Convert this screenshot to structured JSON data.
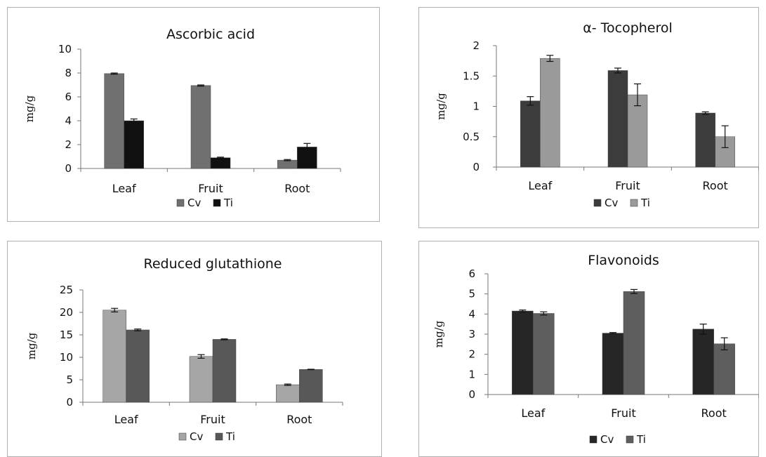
{
  "chart_data": [
    {
      "type": "bar",
      "title": "Ascorbic acid",
      "ylabel": "mg/g",
      "categories": [
        "Leaf",
        "Fruit",
        "Root"
      ],
      "ylim": [
        0,
        10
      ],
      "yticks": [
        0,
        2,
        4,
        6,
        8,
        10
      ],
      "series": [
        {
          "name": "Cv",
          "values": [
            7.95,
            6.95,
            0.7
          ],
          "errors": [
            0.05,
            0.05,
            0.05
          ],
          "color": "#707070"
        },
        {
          "name": "Ti",
          "values": [
            4.0,
            0.9,
            1.8
          ],
          "errors": [
            0.15,
            0.05,
            0.3
          ],
          "color": "#111111"
        }
      ],
      "legend": "bottom",
      "grid": false
    },
    {
      "type": "bar",
      "title": "α- Tocopherol",
      "ylabel": "mg/g",
      "categories": [
        "Leaf",
        "Fruit",
        "Root"
      ],
      "ylim": [
        0,
        2
      ],
      "yticks": [
        0,
        0.5,
        1,
        1.5,
        2
      ],
      "series": [
        {
          "name": "Cv",
          "values": [
            1.09,
            1.59,
            0.89
          ],
          "errors": [
            0.07,
            0.04,
            0.02
          ],
          "color": "#3c3c3c"
        },
        {
          "name": "Ti",
          "values": [
            1.79,
            1.19,
            0.5
          ],
          "errors": [
            0.05,
            0.18,
            0.18
          ],
          "color": "#9a9a9a"
        }
      ],
      "legend": "bottom",
      "grid": false
    },
    {
      "type": "bar",
      "title": "Reduced glutathione",
      "ylabel": "mg/g",
      "categories": [
        "Leaf",
        "Fruit",
        "Root"
      ],
      "ylim": [
        0,
        25
      ],
      "yticks": [
        0,
        5,
        10,
        15,
        20,
        25
      ],
      "series": [
        {
          "name": "Cv",
          "values": [
            20.5,
            10.2,
            3.9
          ],
          "errors": [
            0.4,
            0.4,
            0.15
          ],
          "color": "#a6a6a6"
        },
        {
          "name": "Ti",
          "values": [
            16.1,
            14.0,
            7.3
          ],
          "errors": [
            0.2,
            0.1,
            0.05
          ],
          "color": "#585858"
        }
      ],
      "legend": "bottom",
      "grid": false
    },
    {
      "type": "bar",
      "title": "Flavonoids",
      "ylabel": "mg/g",
      "categories": [
        "Leaf",
        "Fruit",
        "Root"
      ],
      "ylim": [
        0,
        6
      ],
      "yticks": [
        0,
        1,
        2,
        3,
        4,
        5,
        6
      ],
      "series": [
        {
          "name": "Cv",
          "values": [
            4.15,
            3.05,
            3.25
          ],
          "errors": [
            0.05,
            0.03,
            0.25
          ],
          "color": "#262626"
        },
        {
          "name": "Ti",
          "values": [
            4.03,
            5.12,
            2.52
          ],
          "errors": [
            0.08,
            0.1,
            0.3
          ],
          "color": "#5e5e5e"
        }
      ],
      "legend": "bottom",
      "grid": false
    }
  ]
}
